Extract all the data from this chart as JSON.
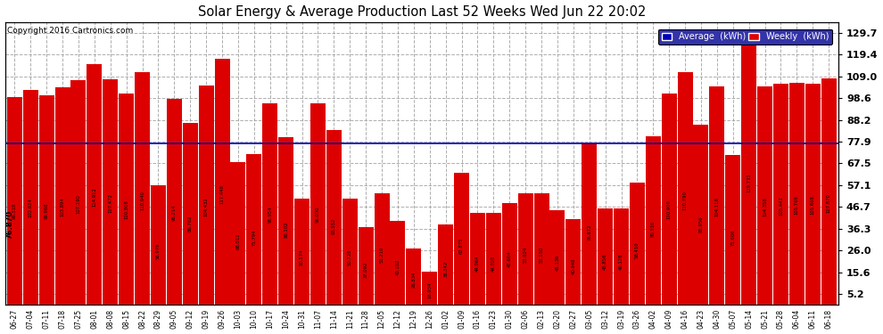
{
  "title": "Solar Energy & Average Production Last 52 Weeks Wed Jun 22 20:02",
  "copyright": "Copyright 2016 Cartronics.com",
  "average_line": 76.87,
  "average_label": "76.870",
  "legend_average_label": "Average  (kWh)",
  "legend_weekly_label": "Weekly  (kWh)",
  "bar_color": "#dd0000",
  "average_line_color": "#0000bb",
  "background_color": "#ffffff",
  "grid_color": "#999999",
  "yticks": [
    5.2,
    15.6,
    26.0,
    36.3,
    46.7,
    57.1,
    67.5,
    77.9,
    88.2,
    98.6,
    109.0,
    119.4,
    129.7
  ],
  "ylim": [
    0,
    135
  ],
  "categories": [
    "06-27",
    "07-04",
    "07-11",
    "07-18",
    "07-25",
    "08-01",
    "08-08",
    "08-15",
    "08-22",
    "08-29",
    "09-05",
    "09-12",
    "09-19",
    "09-26",
    "10-03",
    "10-10",
    "10-17",
    "10-24",
    "10-31",
    "11-07",
    "11-14",
    "11-21",
    "11-28",
    "12-05",
    "12-12",
    "12-19",
    "12-26",
    "01-02",
    "01-09",
    "01-16",
    "01-23",
    "01-30",
    "02-06",
    "02-13",
    "02-20",
    "02-27",
    "03-05",
    "03-12",
    "03-19",
    "03-26",
    "04-02",
    "04-09",
    "04-16",
    "04-23",
    "04-30",
    "05-07",
    "05-14",
    "05-21",
    "05-28",
    "06-04",
    "06-11",
    "06-18"
  ],
  "values": [
    99.318,
    102.634,
    99.968,
    103.894,
    107.19,
    114.912,
    107.472,
    100.808,
    110.94,
    56.976,
    98.214,
    86.762,
    104.432,
    117.448,
    68.012,
    71.794,
    95.954,
    80.102,
    50.574,
    96.0,
    83.552,
    50.728,
    37.092,
    53.21,
    40.102,
    26.834,
    16.034,
    38.342,
    62.875,
    44.064,
    44.02,
    48.664,
    53.024,
    53.15,
    45.136,
    40.948,
    76.872,
    45.856,
    46.128,
    58.41,
    80.31,
    100.906,
    110.79,
    85.956,
    104.118,
    71.606,
    129.731,
    104.358,
    105.442,
    105.766,
    105.668,
    107.87
  ],
  "bar_values_display": [
    "99.318",
    "102.634",
    "99.968",
    "103.894",
    "107.190",
    "114.912",
    "107.472",
    "100.808",
    "110.940",
    "56.976",
    "98.214",
    "86.762",
    "104.432",
    "117.448",
    "68.012",
    "71.794",
    "95.954",
    "80.102",
    "50.574",
    "96.000",
    "83.552",
    "50.728",
    "37.092",
    "53.210",
    "40.102",
    "26.834",
    "16.034",
    "38.342",
    "62.875",
    "44.064",
    "44.020",
    "48.664",
    "53.024",
    "53.150",
    "45.136",
    "40.948",
    "76.872",
    "45.856",
    "46.128",
    "58.410",
    "80.310",
    "100.906",
    "110.790",
    "85.956",
    "104.118",
    "71.606",
    "129.731",
    "104.358",
    "105.442",
    "105.766",
    "105.668",
    "107.870"
  ]
}
